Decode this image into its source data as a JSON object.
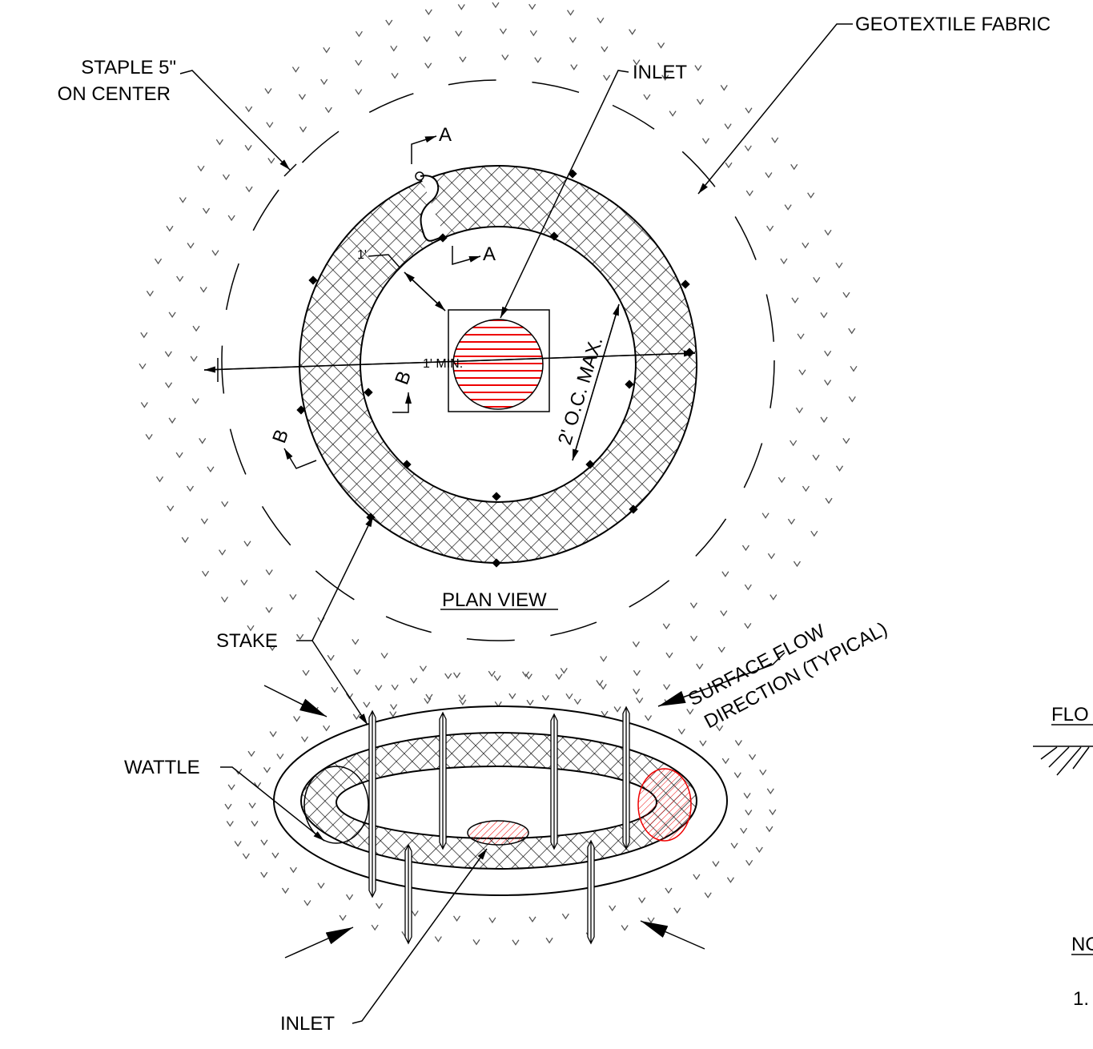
{
  "plan_view": {
    "geotextile": "GEOTEXTILE FABRIC",
    "staple_line_1": "STAPLE 5\"",
    "staple_line_2": "ON CENTER",
    "inlet": "INLET",
    "section_a_top": "A",
    "section_a_bottom": "A",
    "dim_offset": "1'",
    "dim_min": "1' MIN.",
    "section_b_right": "B",
    "section_b_left": "B",
    "dim_spacing": "2' O.C. MAX.",
    "title": "PLAN VIEW"
  },
  "perspective_view": {
    "stake": "STAKE",
    "flow_line_1": "SURFACE FLOW",
    "flow_line_2": "DIRECTION (TYPICAL)",
    "wattle": "WATTLE",
    "inlet": "INLET"
  },
  "side_panel": {
    "flow_title": "FLO",
    "notes_title": "NO",
    "note_1": "1."
  }
}
